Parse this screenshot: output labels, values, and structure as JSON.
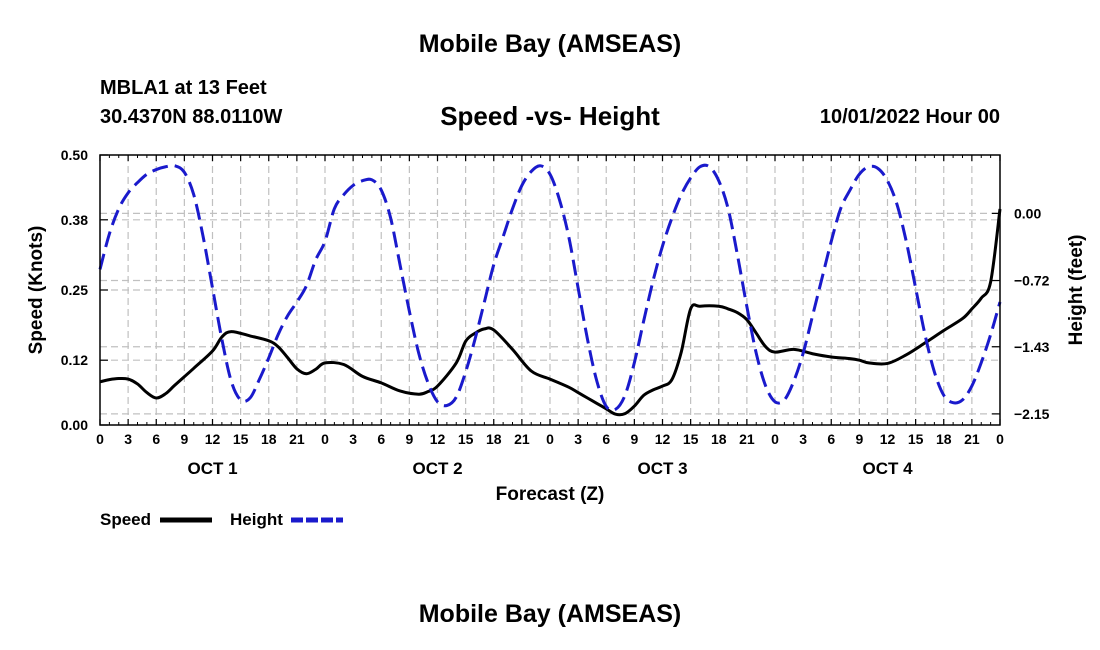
{
  "header": {
    "title": "Mobile Bay (AMSEAS)",
    "station": "MBLA1 at 13 Feet",
    "coordinates": "30.4370N  88.0110W",
    "subtitle": "Speed -vs- Height",
    "datetime": "10/01/2022 Hour 00"
  },
  "footer": {
    "title": "Mobile Bay (AMSEAS)"
  },
  "colors": {
    "speed": "#000000",
    "height": "#1a1acc",
    "grid": "#c0c0c0"
  },
  "chart_data": {
    "type": "line",
    "title": "Speed -vs- Height",
    "xlabel": "Forecast (Z)",
    "ylabel": "Speed (Knots)",
    "y2label": "Height (feet)",
    "xlim": [
      0,
      96
    ],
    "ylim": [
      0,
      0.5
    ],
    "y2lim": [
      -2.269,
      0.626
    ],
    "yticks": [
      0.0,
      0.12,
      0.25,
      0.38,
      0.5
    ],
    "ytick_labels": [
      "0.00",
      "0.12",
      "0.25",
      "0.38",
      "0.50"
    ],
    "y2ticks": [
      -2.15,
      -1.43,
      -0.72,
      0.0
    ],
    "y2tick_labels": [
      "−2.15",
      "−1.43",
      "−0.72",
      "0.00"
    ],
    "x_hours": [
      0,
      3,
      6,
      9,
      12,
      15,
      18,
      21,
      24,
      27,
      30,
      33,
      36,
      39,
      42,
      45,
      48,
      51,
      54,
      57,
      60,
      63,
      66,
      69,
      72,
      75,
      78,
      81,
      84,
      87,
      90,
      93,
      96
    ],
    "xtick_labels": [
      "0",
      "3",
      "6",
      "9",
      "12",
      "15",
      "18",
      "21",
      "0",
      "3",
      "6",
      "9",
      "12",
      "15",
      "18",
      "21",
      "0",
      "3",
      "6",
      "9",
      "12",
      "15",
      "18",
      "21",
      "0",
      "3",
      "6",
      "9",
      "12",
      "15",
      "18",
      "21",
      "0"
    ],
    "day_labels": [
      {
        "label": "OCT 1",
        "hour": 12
      },
      {
        "label": "OCT 2",
        "hour": 36
      },
      {
        "label": "OCT 3",
        "hour": 60
      },
      {
        "label": "OCT 4",
        "hour": 84
      }
    ],
    "series": [
      {
        "name": "Speed",
        "axis": "left",
        "style": "solid",
        "x": [
          0,
          1,
          2,
          3,
          4,
          5,
          6,
          7,
          8,
          10,
          12,
          13,
          14,
          16,
          18,
          19,
          20,
          21,
          22,
          23,
          24,
          26,
          28,
          30,
          32,
          34,
          35,
          36,
          38,
          39,
          40,
          41,
          42,
          44,
          46,
          48,
          50,
          51,
          52,
          53,
          54,
          55,
          56,
          57,
          58,
          59,
          60,
          61,
          62,
          63,
          64,
          66,
          67,
          68,
          69,
          70,
          71,
          72,
          74,
          76,
          78,
          80,
          81,
          82,
          84,
          86,
          88,
          90,
          92,
          93,
          94,
          95,
          96
        ],
        "y": [
          0.08,
          0.084,
          0.086,
          0.085,
          0.076,
          0.06,
          0.05,
          0.058,
          0.074,
          0.105,
          0.137,
          0.163,
          0.173,
          0.165,
          0.156,
          0.145,
          0.125,
          0.104,
          0.095,
          0.103,
          0.115,
          0.112,
          0.09,
          0.078,
          0.063,
          0.057,
          0.062,
          0.072,
          0.115,
          0.155,
          0.17,
          0.178,
          0.176,
          0.14,
          0.1,
          0.085,
          0.07,
          0.06,
          0.05,
          0.04,
          0.03,
          0.02,
          0.021,
          0.035,
          0.055,
          0.065,
          0.072,
          0.084,
          0.135,
          0.215,
          0.22,
          0.22,
          0.215,
          0.208,
          0.195,
          0.17,
          0.145,
          0.135,
          0.14,
          0.132,
          0.126,
          0.123,
          0.12,
          0.115,
          0.114,
          0.13,
          0.152,
          0.175,
          0.197,
          0.215,
          0.235,
          0.265,
          0.4
        ]
      },
      {
        "name": "Height",
        "axis": "right",
        "style": "dashed",
        "x": [
          0,
          1,
          2,
          3,
          4,
          5,
          6,
          7,
          8,
          9,
          10,
          11,
          12,
          13,
          14,
          15,
          16,
          17,
          18,
          19,
          20,
          21,
          22,
          23,
          24,
          25,
          26,
          27,
          28,
          29,
          30,
          31,
          32,
          33,
          34,
          35,
          36,
          37,
          38,
          39,
          40,
          41,
          42,
          43,
          44,
          45,
          46,
          47,
          48,
          49,
          50,
          51,
          52,
          53,
          54,
          55,
          56,
          57,
          58,
          59,
          60,
          61,
          62,
          63,
          64,
          65,
          66,
          67,
          68,
          69,
          70,
          71,
          72,
          73,
          74,
          75,
          76,
          77,
          78,
          79,
          80,
          81,
          82,
          83,
          84,
          85,
          86,
          87,
          88,
          89,
          90,
          91,
          92,
          93,
          94,
          95,
          96
        ],
        "y": [
          -0.6,
          -0.22,
          0.05,
          0.22,
          0.33,
          0.42,
          0.47,
          0.5,
          0.51,
          0.44,
          0.2,
          -0.25,
          -0.8,
          -1.35,
          -1.8,
          -2.0,
          -1.98,
          -1.78,
          -1.55,
          -1.3,
          -1.1,
          -0.95,
          -0.78,
          -0.5,
          -0.3,
          0.05,
          0.2,
          0.3,
          0.35,
          0.36,
          0.25,
          -0.05,
          -0.55,
          -1.05,
          -1.5,
          -1.82,
          -2.02,
          -2.06,
          -1.97,
          -1.7,
          -1.35,
          -0.95,
          -0.55,
          -0.25,
          0.05,
          0.3,
          0.45,
          0.51,
          0.42,
          0.15,
          -0.25,
          -0.8,
          -1.35,
          -1.8,
          -2.07,
          -2.1,
          -1.95,
          -1.6,
          -1.15,
          -0.72,
          -0.35,
          -0.05,
          0.2,
          0.38,
          0.5,
          0.5,
          0.35,
          0.05,
          -0.45,
          -1.0,
          -1.5,
          -1.85,
          -2.02,
          -2.0,
          -1.8,
          -1.5,
          -1.1,
          -0.7,
          -0.3,
          0.05,
          0.25,
          0.42,
          0.5,
          0.48,
          0.35,
          0.1,
          -0.3,
          -0.8,
          -1.3,
          -1.7,
          -1.95,
          -2.03,
          -2.0,
          -1.85,
          -1.6,
          -1.3,
          -0.95
        ]
      }
    ],
    "legend": [
      {
        "label": "Speed",
        "series": "Speed"
      },
      {
        "label": "Height",
        "series": "Height"
      }
    ],
    "grid": true
  }
}
